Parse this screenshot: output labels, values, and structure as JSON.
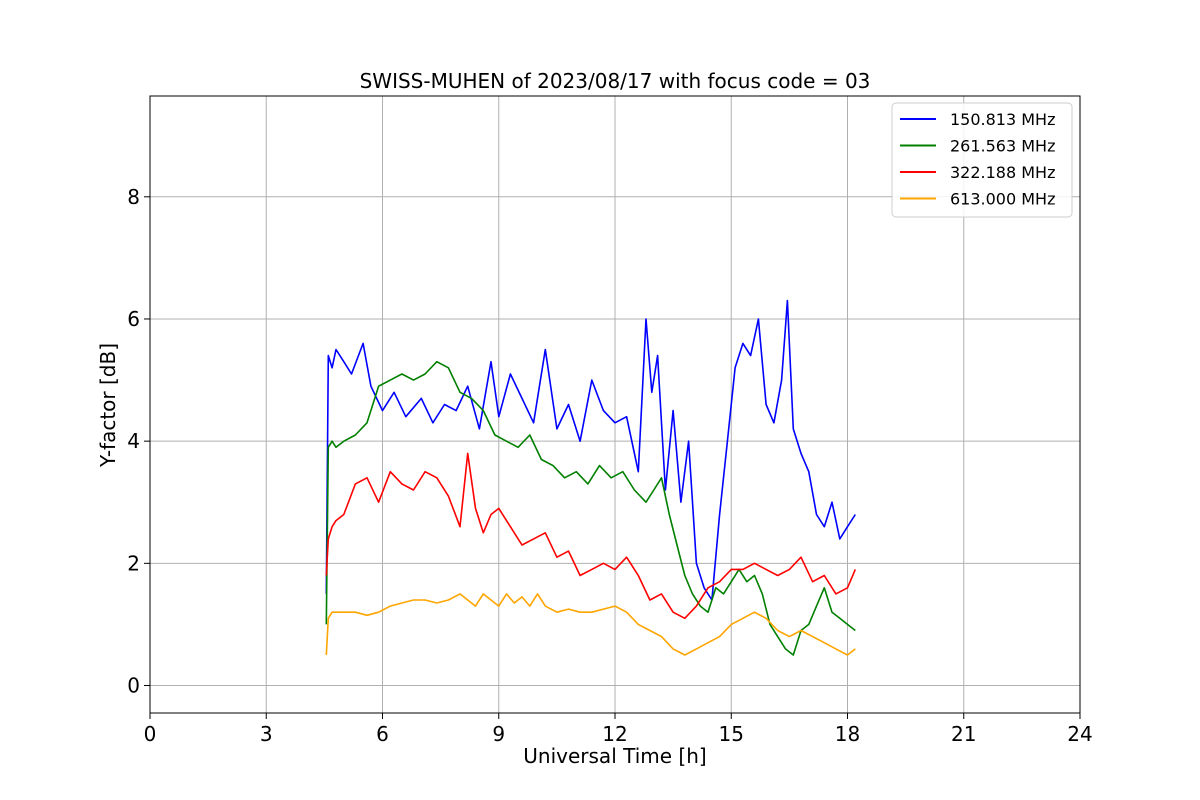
{
  "chart_data": {
    "type": "line",
    "title": "SWISS-MUHEN of 2023/08/17 with focus code = 03",
    "xlabel": "Universal Time [h]",
    "ylabel": "Y-factor [dB]",
    "xlim": [
      0,
      24
    ],
    "ylim": [
      -0.45,
      9.65
    ],
    "xticks": [
      0,
      3,
      6,
      9,
      12,
      15,
      18,
      21,
      24
    ],
    "yticks": [
      0,
      2,
      4,
      6,
      8
    ],
    "grid": true,
    "legend": "top-right",
    "series": [
      {
        "name": "150.813 MHz",
        "color": "#0000ff",
        "x": [
          4.55,
          4.6,
          4.7,
          4.8,
          5.0,
          5.2,
          5.5,
          5.7,
          6.0,
          6.3,
          6.6,
          7.0,
          7.3,
          7.6,
          7.9,
          8.2,
          8.5,
          8.8,
          9.0,
          9.3,
          9.6,
          9.9,
          10.2,
          10.5,
          10.8,
          11.1,
          11.4,
          11.7,
          12.0,
          12.3,
          12.6,
          12.8,
          12.95,
          13.1,
          13.3,
          13.5,
          13.7,
          13.9,
          14.1,
          14.3,
          14.5,
          14.7,
          14.9,
          15.1,
          15.3,
          15.5,
          15.7,
          15.9,
          16.1,
          16.3,
          16.45,
          16.6,
          16.8,
          17.0,
          17.2,
          17.4,
          17.6,
          17.8,
          18.0,
          18.2
        ],
        "y": [
          1.5,
          5.4,
          5.2,
          5.5,
          5.3,
          5.1,
          5.6,
          4.9,
          4.5,
          4.8,
          4.4,
          4.7,
          4.3,
          4.6,
          4.5,
          4.9,
          4.2,
          5.3,
          4.4,
          5.1,
          4.7,
          4.3,
          5.5,
          4.2,
          4.6,
          4.0,
          5.0,
          4.5,
          4.3,
          4.4,
          3.5,
          6.0,
          4.8,
          5.4,
          3.2,
          4.5,
          3.0,
          4.0,
          2.0,
          1.6,
          1.4,
          2.8,
          4.0,
          5.2,
          5.6,
          5.4,
          6.0,
          4.6,
          4.3,
          5.0,
          6.3,
          4.2,
          3.8,
          3.5,
          2.8,
          2.6,
          3.0,
          2.4,
          2.6,
          2.8
        ]
      },
      {
        "name": "261.563 MHz",
        "color": "#008000",
        "x": [
          4.55,
          4.6,
          4.7,
          4.8,
          5.0,
          5.3,
          5.6,
          5.9,
          6.2,
          6.5,
          6.8,
          7.1,
          7.4,
          7.7,
          8.0,
          8.3,
          8.6,
          8.9,
          9.2,
          9.5,
          9.8,
          10.1,
          10.4,
          10.7,
          11.0,
          11.3,
          11.6,
          11.9,
          12.2,
          12.5,
          12.8,
          13.0,
          13.2,
          13.4,
          13.6,
          13.8,
          14.0,
          14.2,
          14.4,
          14.6,
          14.8,
          15.0,
          15.2,
          15.4,
          15.6,
          15.8,
          16.0,
          16.2,
          16.4,
          16.6,
          16.8,
          17.0,
          17.2,
          17.4,
          17.6,
          17.8,
          18.0,
          18.2
        ],
        "y": [
          1.0,
          3.9,
          4.0,
          3.9,
          4.0,
          4.1,
          4.3,
          4.9,
          5.0,
          5.1,
          5.0,
          5.1,
          5.3,
          5.2,
          4.8,
          4.7,
          4.5,
          4.1,
          4.0,
          3.9,
          4.1,
          3.7,
          3.6,
          3.4,
          3.5,
          3.3,
          3.6,
          3.4,
          3.5,
          3.2,
          3.0,
          3.2,
          3.4,
          2.8,
          2.3,
          1.8,
          1.5,
          1.3,
          1.2,
          1.6,
          1.5,
          1.7,
          1.9,
          1.7,
          1.8,
          1.5,
          1.0,
          0.8,
          0.6,
          0.5,
          0.9,
          1.0,
          1.3,
          1.6,
          1.2,
          1.1,
          1.0,
          0.9
        ]
      },
      {
        "name": "322.188 MHz",
        "color": "#ff0000",
        "x": [
          4.55,
          4.6,
          4.7,
          4.8,
          5.0,
          5.3,
          5.6,
          5.9,
          6.2,
          6.5,
          6.8,
          7.1,
          7.4,
          7.7,
          8.0,
          8.2,
          8.4,
          8.6,
          8.8,
          9.0,
          9.3,
          9.6,
          9.9,
          10.2,
          10.5,
          10.8,
          11.1,
          11.4,
          11.7,
          12.0,
          12.3,
          12.6,
          12.9,
          13.2,
          13.5,
          13.8,
          14.1,
          14.4,
          14.7,
          15.0,
          15.3,
          15.6,
          15.9,
          16.2,
          16.5,
          16.8,
          17.1,
          17.4,
          17.7,
          18.0,
          18.2
        ],
        "y": [
          1.8,
          2.4,
          2.6,
          2.7,
          2.8,
          3.3,
          3.4,
          3.0,
          3.5,
          3.3,
          3.2,
          3.5,
          3.4,
          3.1,
          2.6,
          3.8,
          2.9,
          2.5,
          2.8,
          2.9,
          2.6,
          2.3,
          2.4,
          2.5,
          2.1,
          2.2,
          1.8,
          1.9,
          2.0,
          1.9,
          2.1,
          1.8,
          1.4,
          1.5,
          1.2,
          1.1,
          1.3,
          1.6,
          1.7,
          1.9,
          1.9,
          2.0,
          1.9,
          1.8,
          1.9,
          2.1,
          1.7,
          1.8,
          1.5,
          1.6,
          1.9
        ]
      },
      {
        "name": "613.000 MHz",
        "color": "#ffa500",
        "x": [
          4.55,
          4.6,
          4.7,
          4.8,
          5.0,
          5.3,
          5.6,
          5.9,
          6.2,
          6.5,
          6.8,
          7.1,
          7.4,
          7.7,
          8.0,
          8.2,
          8.4,
          8.6,
          8.8,
          9.0,
          9.2,
          9.4,
          9.6,
          9.8,
          10.0,
          10.2,
          10.5,
          10.8,
          11.1,
          11.4,
          11.7,
          12.0,
          12.3,
          12.6,
          12.9,
          13.2,
          13.5,
          13.8,
          14.1,
          14.4,
          14.7,
          15.0,
          15.3,
          15.6,
          15.9,
          16.2,
          16.5,
          16.8,
          17.1,
          17.4,
          17.7,
          18.0,
          18.2
        ],
        "y": [
          0.5,
          1.1,
          1.2,
          1.2,
          1.2,
          1.2,
          1.15,
          1.2,
          1.3,
          1.35,
          1.4,
          1.4,
          1.35,
          1.4,
          1.5,
          1.4,
          1.3,
          1.5,
          1.4,
          1.3,
          1.5,
          1.35,
          1.45,
          1.3,
          1.5,
          1.3,
          1.2,
          1.25,
          1.2,
          1.2,
          1.25,
          1.3,
          1.2,
          1.0,
          0.9,
          0.8,
          0.6,
          0.5,
          0.6,
          0.7,
          0.8,
          1.0,
          1.1,
          1.2,
          1.1,
          0.9,
          0.8,
          0.9,
          0.8,
          0.7,
          0.6,
          0.5,
          0.6
        ]
      }
    ]
  }
}
